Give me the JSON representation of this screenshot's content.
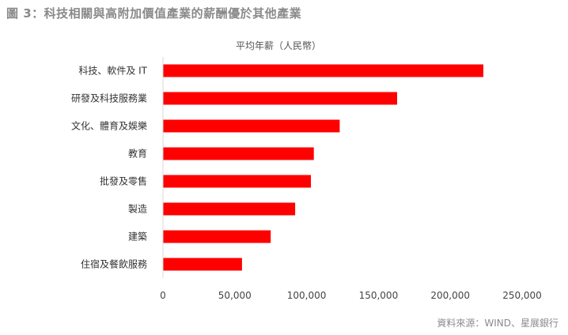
{
  "figure_title": "圖 3：科技相關與高附加價值產業的薪酬優於其他產業",
  "source_note": "資料來源：WIND、星展銀行",
  "colors": {
    "bar": "#ff0000",
    "axis": "#d9d9d9",
    "title": "#8a8a8a"
  },
  "chart_data": {
    "type": "bar",
    "orientation": "horizontal",
    "title": "平均年薪（人民幣）",
    "xlabel": "",
    "ylabel": "",
    "categories": [
      "科技、軟件及 IT",
      "研發及科技服務業",
      "文化、體育及娛樂",
      "教育",
      "批發及零售",
      "製造",
      "建築",
      "住宿及餐飲服務"
    ],
    "values": [
      223000,
      163000,
      123000,
      105000,
      103000,
      92000,
      75000,
      55000
    ],
    "xlim": [
      0,
      250000
    ],
    "xticks": [
      0,
      50000,
      100000,
      150000,
      200000,
      250000
    ],
    "xtick_labels": [
      "0",
      "50,000",
      "100,000",
      "150,000",
      "200,000",
      "250,000"
    ],
    "grid": false,
    "legend": "none"
  }
}
